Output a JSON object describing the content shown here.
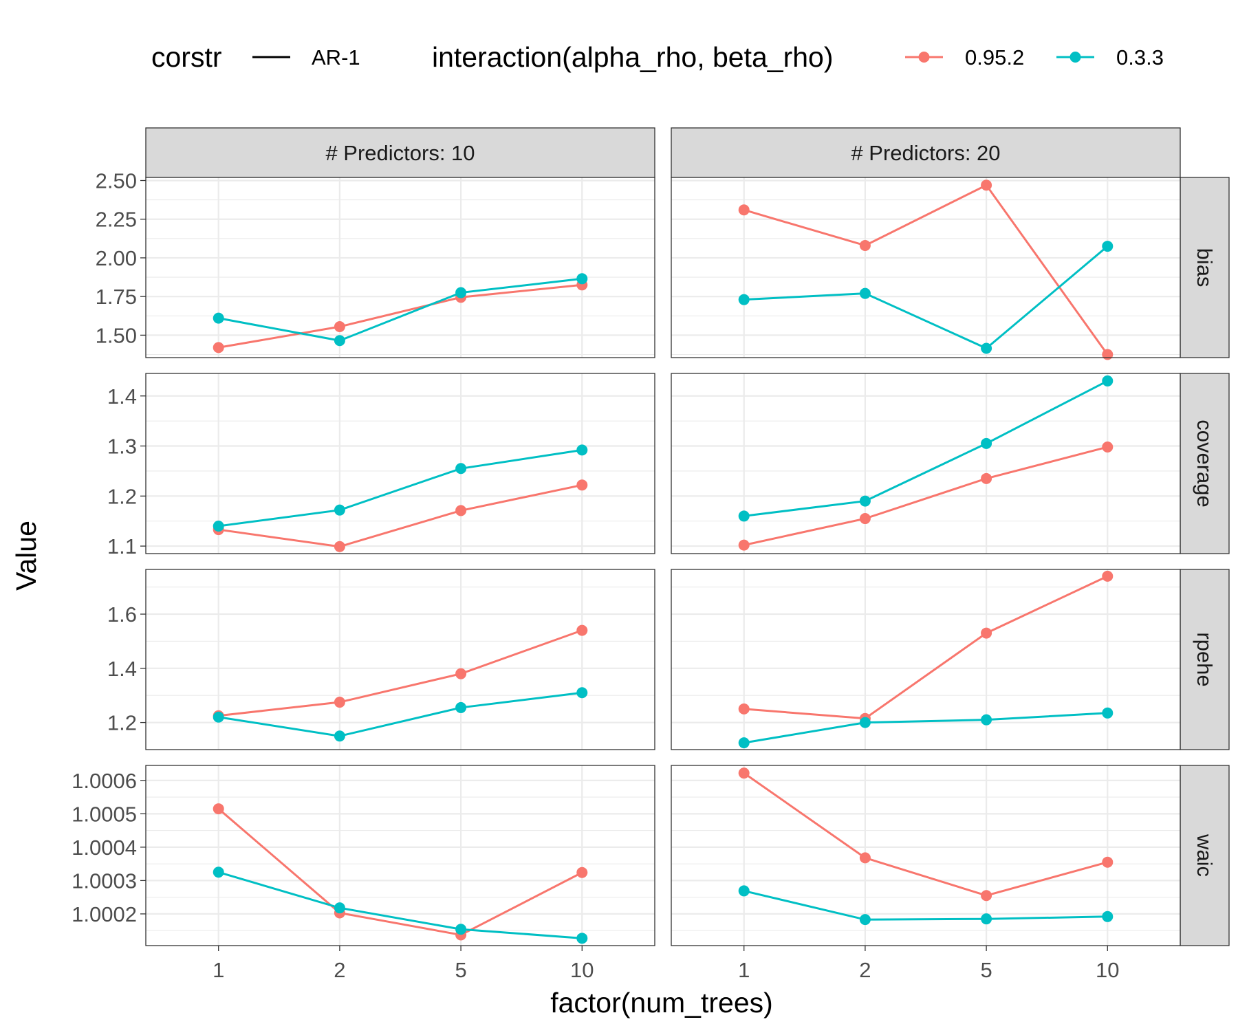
{
  "chart_data": {
    "type": "line",
    "xlabel": "factor(num_trees)",
    "ylabel": "Value",
    "categories": [
      "1",
      "2",
      "5",
      "10"
    ],
    "legend": {
      "corstr_title": "corstr",
      "corstr_item": "AR-1",
      "interaction_title": "interaction(alpha_rho, beta_rho)",
      "position": "top",
      "entries": [
        "0.95.2",
        "0.3.3"
      ]
    },
    "colors": {
      "0.95.2": "#F8766D",
      "0.3.3": "#00BFC4"
    },
    "columns": [
      "# Predictors: 10",
      "# Predictors: 20"
    ],
    "grid": true,
    "rows": [
      {
        "name": "bias",
        "ylim": [
          1.355,
          2.52
        ],
        "ticks": [
          1.5,
          1.75,
          2.0,
          2.25,
          2.5
        ],
        "tick_labels": [
          "1.50",
          "1.75",
          "2.00",
          "2.25",
          "2.50"
        ],
        "panels": [
          {
            "series": [
              {
                "name": "0.95.2",
                "values": [
                  1.42,
                  1.555,
                  1.745,
                  1.825
                ]
              },
              {
                "name": "0.3.3",
                "values": [
                  1.61,
                  1.465,
                  1.775,
                  1.865
                ]
              }
            ]
          },
          {
            "series": [
              {
                "name": "0.95.2",
                "values": [
                  2.31,
                  2.08,
                  2.47,
                  1.375
                ]
              },
              {
                "name": "0.3.3",
                "values": [
                  1.73,
                  1.77,
                  1.415,
                  2.075
                ]
              }
            ]
          }
        ]
      },
      {
        "name": "coverage",
        "ylim": [
          1.085,
          1.445
        ],
        "ticks": [
          1.1,
          1.2,
          1.3,
          1.4
        ],
        "tick_labels": [
          "1.1",
          "1.2",
          "1.3",
          "1.4"
        ],
        "panels": [
          {
            "series": [
              {
                "name": "0.95.2",
                "values": [
                  1.133,
                  1.099,
                  1.171,
                  1.222
                ]
              },
              {
                "name": "0.3.3",
                "values": [
                  1.14,
                  1.172,
                  1.255,
                  1.292
                ]
              }
            ]
          },
          {
            "series": [
              {
                "name": "0.95.2",
                "values": [
                  1.102,
                  1.155,
                  1.235,
                  1.298
                ]
              },
              {
                "name": "0.3.3",
                "values": [
                  1.16,
                  1.19,
                  1.305,
                  1.43
                ]
              }
            ]
          }
        ]
      },
      {
        "name": "rpehe",
        "ylim": [
          1.1,
          1.765
        ],
        "ticks": [
          1.2,
          1.4,
          1.6
        ],
        "tick_labels": [
          "1.2",
          "1.4",
          "1.6"
        ],
        "panels": [
          {
            "series": [
              {
                "name": "0.95.2",
                "values": [
                  1.225,
                  1.275,
                  1.38,
                  1.54
                ]
              },
              {
                "name": "0.3.3",
                "values": [
                  1.22,
                  1.15,
                  1.255,
                  1.31
                ]
              }
            ]
          },
          {
            "series": [
              {
                "name": "0.95.2",
                "values": [
                  1.25,
                  1.215,
                  1.53,
                  1.74
                ]
              },
              {
                "name": "0.3.3",
                "values": [
                  1.125,
                  1.2,
                  1.21,
                  1.235
                ]
              }
            ]
          }
        ]
      },
      {
        "name": "waic",
        "ylim": [
          1.000105,
          1.000645
        ],
        "ticks": [
          1.0002,
          1.0003,
          1.0004,
          1.0005,
          1.0006
        ],
        "tick_labels": [
          "1.0002",
          "1.0003",
          "1.0004",
          "1.0005",
          "1.0006"
        ],
        "panels": [
          {
            "series": [
              {
                "name": "0.95.2",
                "values": [
                  1.000515,
                  1.000203,
                  1.000137,
                  1.000324
                ]
              },
              {
                "name": "0.3.3",
                "values": [
                  1.000325,
                  1.000218,
                  1.000154,
                  1.000127
                ]
              }
            ]
          },
          {
            "series": [
              {
                "name": "0.95.2",
                "values": [
                  1.000622,
                  1.000368,
                  1.000255,
                  1.000355
                ]
              },
              {
                "name": "0.3.3",
                "values": [
                  1.000269,
                  1.000183,
                  1.000185,
                  1.000192
                ]
              }
            ]
          }
        ]
      }
    ]
  }
}
